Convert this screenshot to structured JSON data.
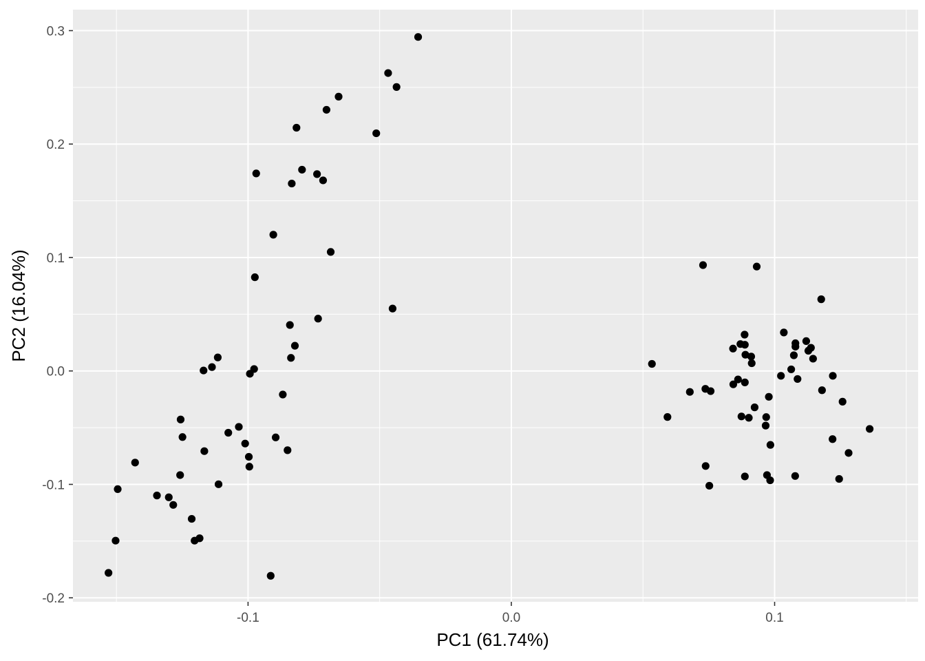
{
  "chart_data": {
    "type": "scatter",
    "xlabel": "PC1 (61.74%)",
    "ylabel": "PC2 (16.04%)",
    "xlim": [
      -0.1665,
      0.1545
    ],
    "ylim": [
      -0.2035,
      0.3185
    ],
    "x_ticks": [
      -0.1,
      0.0,
      0.1
    ],
    "x_tick_labels": [
      "-0.1",
      "0.0",
      "0.1"
    ],
    "y_ticks": [
      -0.2,
      -0.1,
      0.0,
      0.1,
      0.2,
      0.3
    ],
    "y_tick_labels": [
      "-0.2",
      "-0.1",
      "0.0",
      "0.1",
      "0.2",
      "0.3"
    ],
    "grid": true,
    "panel_background": "#ebebeb",
    "grid_color": "#ffffff",
    "point_color": "#000000",
    "points": [
      [
        -0.0354,
        0.2944
      ],
      [
        -0.0468,
        0.2626
      ],
      [
        -0.0436,
        0.2503
      ],
      [
        -0.0656,
        0.2418
      ],
      [
        -0.0702,
        0.2302
      ],
      [
        -0.0816,
        0.2144
      ],
      [
        -0.0513,
        0.2095
      ],
      [
        -0.0969,
        0.1741
      ],
      [
        -0.0795,
        0.1774
      ],
      [
        -0.0738,
        0.1735
      ],
      [
        -0.0715,
        0.168
      ],
      [
        -0.0834,
        0.1652
      ],
      [
        -0.0904,
        0.1201
      ],
      [
        -0.0686,
        0.1049
      ],
      [
        -0.0974,
        0.0826
      ],
      [
        -0.0451,
        0.055
      ],
      [
        -0.0734,
        0.0461
      ],
      [
        -0.0841,
        0.0405
      ],
      [
        -0.0822,
        0.0222
      ],
      [
        -0.0837,
        0.0115
      ],
      [
        -0.1115,
        0.0119
      ],
      [
        -0.1137,
        0.0034
      ],
      [
        -0.1169,
        0.0004
      ],
      [
        -0.0977,
        0.0017
      ],
      [
        -0.0993,
        -0.0025
      ],
      [
        -0.0868,
        -0.0208
      ],
      [
        -0.1256,
        -0.0428
      ],
      [
        -0.1249,
        -0.0583
      ],
      [
        -0.0895,
        -0.0586
      ],
      [
        -0.1035,
        -0.0493
      ],
      [
        -0.1075,
        -0.0545
      ],
      [
        -0.1011,
        -0.064
      ],
      [
        -0.1166,
        -0.0707
      ],
      [
        -0.085,
        -0.0699
      ],
      [
        -0.0997,
        -0.0757
      ],
      [
        -0.0995,
        -0.0844
      ],
      [
        -0.1429,
        -0.0808
      ],
      [
        -0.1258,
        -0.0918
      ],
      [
        -0.1112,
        -0.0999
      ],
      [
        -0.1495,
        -0.1042
      ],
      [
        -0.1346,
        -0.1098
      ],
      [
        -0.1301,
        -0.1114
      ],
      [
        -0.1284,
        -0.1181
      ],
      [
        -0.1214,
        -0.1304
      ],
      [
        -0.1184,
        -0.1475
      ],
      [
        -0.1203,
        -0.1496
      ],
      [
        -0.1503,
        -0.1496
      ],
      [
        -0.153,
        -0.178
      ],
      [
        -0.0914,
        -0.1806
      ],
      [
        0.0728,
        0.0933
      ],
      [
        0.0932,
        0.092
      ],
      [
        0.1177,
        0.0632
      ],
      [
        0.1035,
        0.0339
      ],
      [
        0.0886,
        0.032
      ],
      [
        0.1079,
        0.0244
      ],
      [
        0.112,
        0.0263
      ],
      [
        0.1079,
        0.0214
      ],
      [
        0.1138,
        0.0204
      ],
      [
        0.087,
        0.0237
      ],
      [
        0.0887,
        0.0231
      ],
      [
        0.0842,
        0.0197
      ],
      [
        0.1128,
        0.0178
      ],
      [
        0.0889,
        0.0143
      ],
      [
        0.0911,
        0.0127
      ],
      [
        0.1073,
        0.0138
      ],
      [
        0.1146,
        0.0108
      ],
      [
        0.0534,
        0.0062
      ],
      [
        0.0913,
        0.0068
      ],
      [
        0.1063,
        0.0014
      ],
      [
        0.1024,
        -0.0043
      ],
      [
        0.1221,
        -0.0043
      ],
      [
        0.0861,
        -0.0075
      ],
      [
        0.1087,
        -0.0071
      ],
      [
        0.0887,
        -0.0101
      ],
      [
        0.0843,
        -0.0118
      ],
      [
        0.0737,
        -0.0158
      ],
      [
        0.0757,
        -0.0178
      ],
      [
        0.0678,
        -0.0185
      ],
      [
        0.118,
        -0.017
      ],
      [
        0.0978,
        -0.0228
      ],
      [
        0.1258,
        -0.0271
      ],
      [
        0.0924,
        -0.0321
      ],
      [
        0.0593,
        -0.0406
      ],
      [
        0.0874,
        -0.0401
      ],
      [
        0.0902,
        -0.0413
      ],
      [
        0.0968,
        -0.0407
      ],
      [
        0.0966,
        -0.0482
      ],
      [
        0.1361,
        -0.0511
      ],
      [
        0.122,
        -0.0601
      ],
      [
        0.0984,
        -0.0652
      ],
      [
        0.1281,
        -0.0723
      ],
      [
        0.0738,
        -0.0838
      ],
      [
        0.0971,
        -0.0918
      ],
      [
        0.0887,
        -0.093
      ],
      [
        0.1078,
        -0.0926
      ],
      [
        0.1245,
        -0.0952
      ],
      [
        0.0983,
        -0.0964
      ],
      [
        0.0752,
        -0.1012
      ]
    ]
  }
}
